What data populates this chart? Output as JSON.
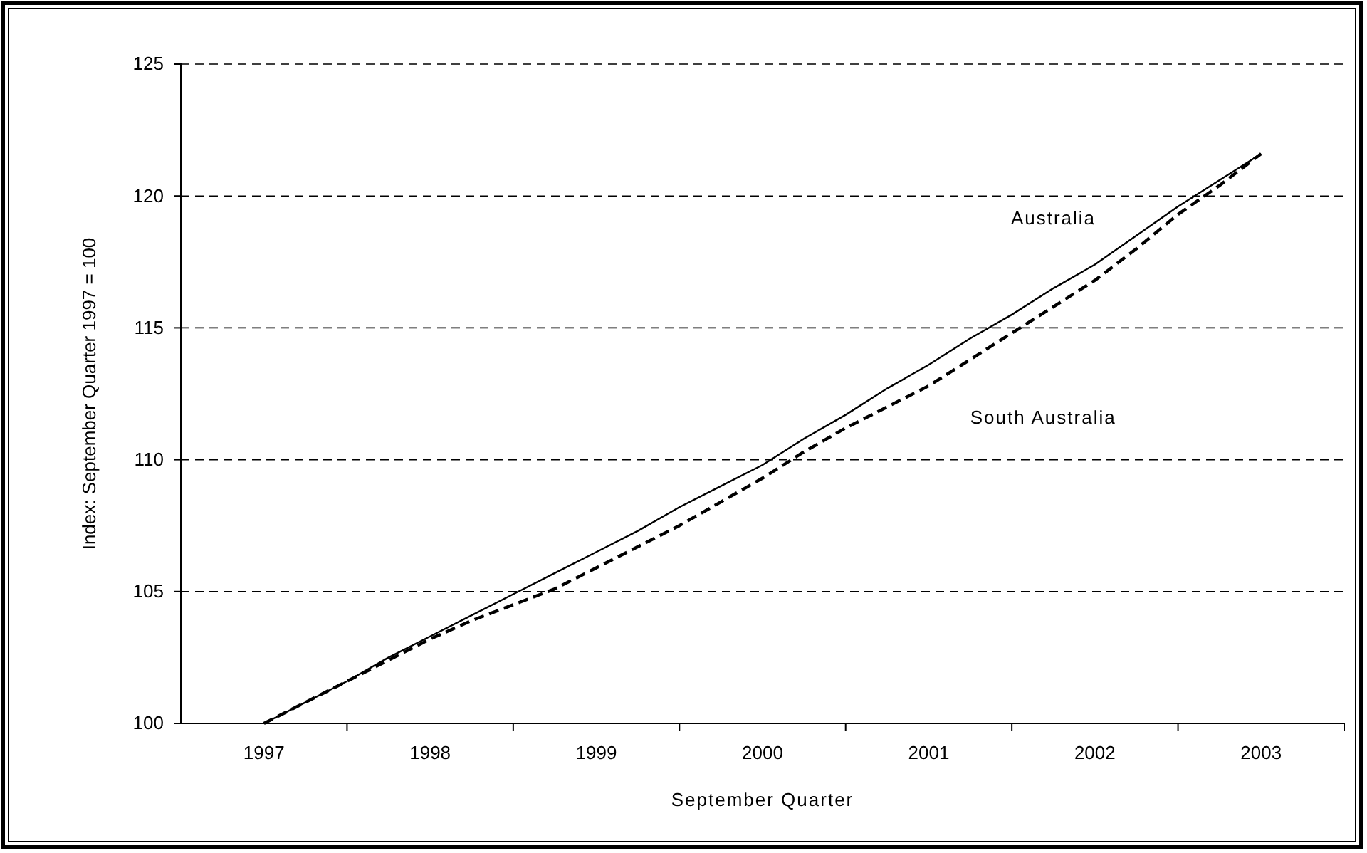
{
  "chart_data": {
    "type": "line",
    "xlabel": "September Quarter",
    "ylabel": "Index: September Quarter 1997 = 100",
    "categories": [
      "1997",
      null,
      null,
      null,
      "1998",
      null,
      null,
      null,
      "1999",
      null,
      null,
      null,
      "2000",
      null,
      null,
      null,
      "2001",
      null,
      null,
      null,
      "2002",
      null,
      null,
      null,
      "2003"
    ],
    "series": [
      {
        "name": "Australia",
        "color": "#000000",
        "line_style": "solid",
        "values": [
          100,
          100.8,
          101.6,
          102.5,
          103.3,
          104.1,
          104.9,
          105.7,
          106.5,
          107.3,
          108.2,
          109.0,
          109.8,
          110.8,
          111.7,
          112.7,
          113.6,
          114.6,
          115.5,
          116.5,
          117.4,
          118.5,
          119.6,
          120.6,
          121.6
        ]
      },
      {
        "name": "South Australia",
        "color": "#000000",
        "line_style": "dashed",
        "values": [
          100,
          100.8,
          101.6,
          102.4,
          103.2,
          103.9,
          104.5,
          105.1,
          105.9,
          106.7,
          107.5,
          108.4,
          109.3,
          110.3,
          111.2,
          112.0,
          112.8,
          113.8,
          114.8,
          115.8,
          116.8,
          118.0,
          119.3,
          120.4,
          121.6
        ]
      }
    ],
    "ylim": [
      100,
      125
    ],
    "yticks": [
      100,
      105,
      110,
      115,
      120,
      125
    ],
    "grid": "y",
    "legend": false,
    "marker": "none"
  }
}
